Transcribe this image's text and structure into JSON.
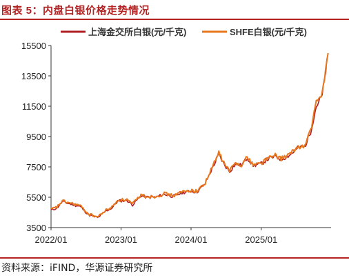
{
  "header": {
    "title": "图表 5：内盘白银价格走势情况"
  },
  "footer": {
    "source": "资料来源：iFIND，华源证券研究所"
  },
  "colors": {
    "accent": "#b22222",
    "sge": "#b01f24",
    "shfe": "#e8781e"
  },
  "chart_data": {
    "type": "line",
    "title": "",
    "xlabel": "",
    "ylabel": "",
    "x_ticks": [
      "2022/01",
      "2023/01",
      "2024/01",
      "2025/01"
    ],
    "y_ticks": [
      3500,
      5500,
      7500,
      9500,
      11500,
      13500,
      15500
    ],
    "ylim": [
      3500,
      15500
    ],
    "xlim": [
      "2022-01-01",
      "2025-12-31"
    ],
    "grid": false,
    "legend": "top",
    "series": [
      {
        "name": "上海金交所白银(元/千克)",
        "color": "#b01f24",
        "points": [
          [
            "2022-01-01",
            4650
          ],
          [
            "2022-02-01",
            4800
          ],
          [
            "2022-03-01",
            5200
          ],
          [
            "2022-04-15",
            5050
          ],
          [
            "2022-06-01",
            4900
          ],
          [
            "2022-07-15",
            4350
          ],
          [
            "2022-09-01",
            4150
          ],
          [
            "2022-10-15",
            4600
          ],
          [
            "2022-11-15",
            4800
          ],
          [
            "2022-12-15",
            5250
          ],
          [
            "2023-02-01",
            5300
          ],
          [
            "2023-03-01",
            5000
          ],
          [
            "2023-04-15",
            5600
          ],
          [
            "2023-05-15",
            5500
          ],
          [
            "2023-07-01",
            5500
          ],
          [
            "2023-08-15",
            5700
          ],
          [
            "2023-10-01",
            5550
          ],
          [
            "2023-11-15",
            5800
          ],
          [
            "2023-12-31",
            5900
          ],
          [
            "2024-02-01",
            5850
          ],
          [
            "2024-03-15",
            6400
          ],
          [
            "2024-04-20",
            7400
          ],
          [
            "2024-05-25",
            8300
          ],
          [
            "2024-06-20",
            7700
          ],
          [
            "2024-07-20",
            7200
          ],
          [
            "2024-08-20",
            7700
          ],
          [
            "2024-09-20",
            7600
          ],
          [
            "2024-10-20",
            8100
          ],
          [
            "2024-11-20",
            7600
          ],
          [
            "2024-12-31",
            7700
          ],
          [
            "2025-02-01",
            8000
          ],
          [
            "2025-03-15",
            8200
          ],
          [
            "2025-04-15",
            8000
          ],
          [
            "2025-06-01",
            8300
          ],
          [
            "2025-07-15",
            8800
          ],
          [
            "2025-08-15",
            8800
          ],
          [
            "2025-09-15",
            9800
          ],
          [
            "2025-10-15",
            11500
          ],
          [
            "2025-11-15",
            12200
          ],
          [
            "2025-12-15",
            14900
          ]
        ]
      },
      {
        "name": "SHFE白银(元/千克)",
        "color": "#e8781e",
        "points": [
          [
            "2022-01-01",
            4700
          ],
          [
            "2022-02-01",
            4850
          ],
          [
            "2022-03-01",
            5250
          ],
          [
            "2022-04-15",
            5100
          ],
          [
            "2022-06-01",
            4950
          ],
          [
            "2022-07-15",
            4400
          ],
          [
            "2022-09-01",
            4200
          ],
          [
            "2022-10-15",
            4650
          ],
          [
            "2022-11-15",
            4850
          ],
          [
            "2022-12-15",
            5300
          ],
          [
            "2023-02-01",
            5350
          ],
          [
            "2023-03-01",
            5050
          ],
          [
            "2023-04-15",
            5650
          ],
          [
            "2023-05-15",
            5550
          ],
          [
            "2023-07-01",
            5550
          ],
          [
            "2023-08-15",
            5750
          ],
          [
            "2023-10-01",
            5600
          ],
          [
            "2023-11-15",
            5850
          ],
          [
            "2023-12-31",
            5950
          ],
          [
            "2024-02-01",
            5900
          ],
          [
            "2024-03-15",
            6450
          ],
          [
            "2024-04-20",
            7450
          ],
          [
            "2024-05-25",
            8450
          ],
          [
            "2024-06-20",
            7750
          ],
          [
            "2024-07-20",
            7250
          ],
          [
            "2024-08-20",
            7750
          ],
          [
            "2024-09-20",
            7650
          ],
          [
            "2024-10-20",
            8150
          ],
          [
            "2024-11-20",
            7650
          ],
          [
            "2024-12-31",
            7750
          ],
          [
            "2025-02-01",
            8050
          ],
          [
            "2025-03-15",
            8250
          ],
          [
            "2025-04-15",
            8050
          ],
          [
            "2025-06-01",
            8350
          ],
          [
            "2025-07-15",
            8850
          ],
          [
            "2025-08-15",
            8850
          ],
          [
            "2025-09-15",
            9900
          ],
          [
            "2025-10-15",
            11700
          ],
          [
            "2025-11-15",
            12400
          ],
          [
            "2025-12-15",
            15000
          ]
        ]
      }
    ]
  }
}
